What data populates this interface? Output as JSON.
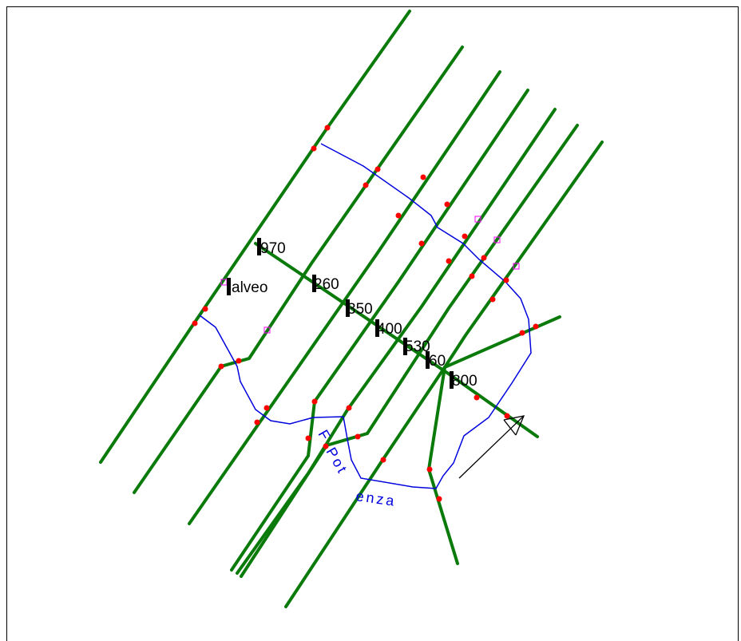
{
  "section_labels": [
    {
      "id": "s1",
      "text": "970"
    },
    {
      "id": "s2",
      "text": "260"
    },
    {
      "id": "s3",
      "text": "350"
    },
    {
      "id": "s4",
      "text": "400"
    },
    {
      "id": "s5",
      "text": "530"
    },
    {
      "id": "s6",
      "text": "60"
    },
    {
      "id": "s7",
      "text": "800"
    }
  ],
  "alveo_label": "alveo",
  "river_label": {
    "parts": [
      "F",
      "Pot",
      "enza"
    ]
  },
  "colors": {
    "section_line": "#0a7a0a",
    "river": "#0000dd",
    "point": "#ff0000",
    "marker": "#ff00ff",
    "border": "#000000"
  },
  "icons": {
    "flow_direction": "arrow-icon",
    "point": "red-dot-icon",
    "marker": "square-marker-icon"
  }
}
